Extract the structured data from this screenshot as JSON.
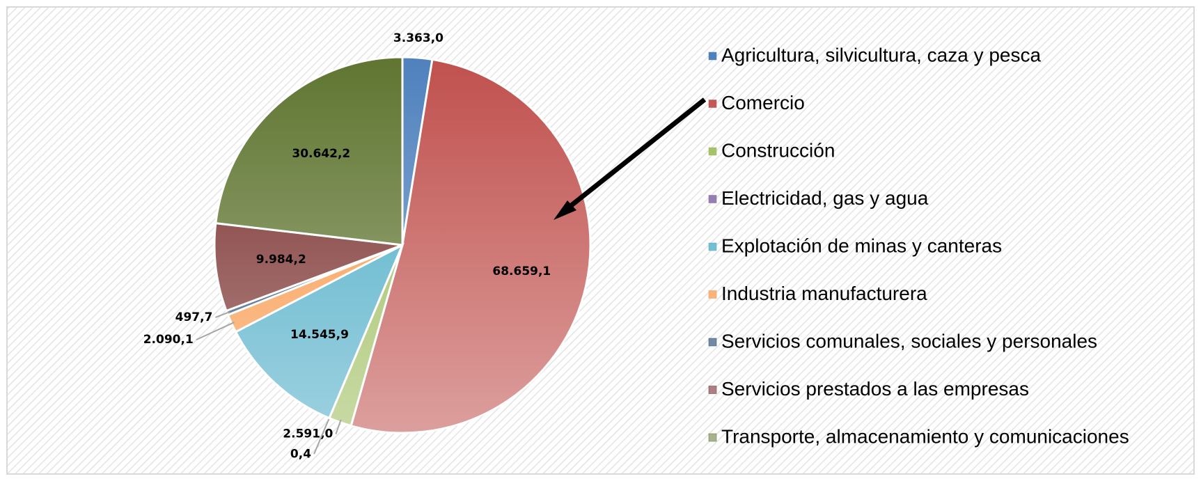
{
  "chart_data": {
    "type": "pie",
    "categories": [
      "Agricultura, silvicultura, caza y pesca",
      "Comercio",
      "Construcción",
      "Electricidad, gas y agua",
      "Explotación de minas y canteras",
      "Industria manufacturera",
      "Servicios comunales, sociales y personales",
      "Servicios prestados a las empresas",
      "Transporte, almacenamiento y comunicaciones"
    ],
    "values": [
      3363.0,
      68659.1,
      2591.0,
      0.4,
      14545.9,
      2090.1,
      497.7,
      9984.2,
      30642.2
    ],
    "value_labels": [
      "3.363,0",
      "68.659,1",
      "2.591,0",
      "0,4",
      "14.545,9",
      "2.090,1",
      "497,7",
      "9.984,2",
      "30.642,2"
    ],
    "colors": [
      "#4f81bd",
      "#c0504d",
      "#9bbb59",
      "#8064a2",
      "#4bacc6",
      "#f79646",
      "#2c4d75",
      "#772c2a",
      "#5f7530"
    ],
    "legend": "right"
  }
}
